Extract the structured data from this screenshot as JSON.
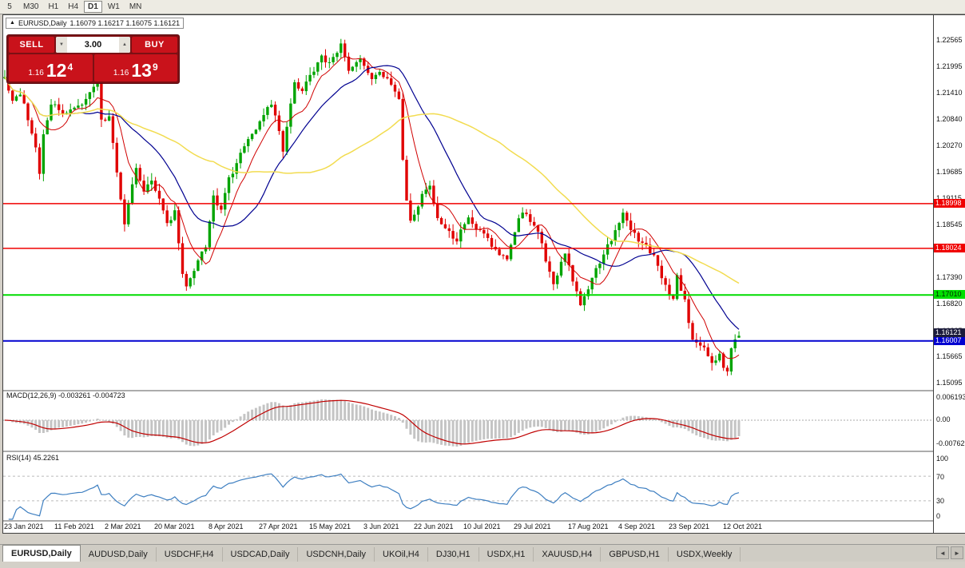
{
  "toolbar": {
    "timeframes": [
      {
        "label": "5",
        "active": false
      },
      {
        "label": "M30",
        "active": false
      },
      {
        "label": "H1",
        "active": false
      },
      {
        "label": "H4",
        "active": false
      },
      {
        "label": "D1",
        "active": true
      },
      {
        "label": "W1",
        "active": false
      },
      {
        "label": "MN",
        "active": false
      }
    ]
  },
  "chart": {
    "title": {
      "expander_icon": "▲",
      "symbol": "EURUSD,Daily",
      "ohlc": "1.16079 1.16217 1.16075 1.16121"
    },
    "colors": {
      "bull": "#00A400",
      "bear": "#E00000",
      "background": "#FFFFFF"
    },
    "price_axis": {
      "ticks": [
        "1.22565",
        "1.21995",
        "1.21410",
        "1.20840",
        "1.20270",
        "1.19685",
        "1.19115",
        "1.18545",
        "1.17390",
        "1.16820",
        "1.16235",
        "1.15665",
        "1.15095"
      ],
      "tags": [
        {
          "text": "1.18998",
          "price": 1.18998,
          "bg": "#F00000",
          "fg": "#FFFFFF"
        },
        {
          "text": "1.18024",
          "price": 1.18024,
          "bg": "#F00000",
          "fg": "#FFFFFF"
        },
        {
          "text": "1.17010",
          "price": 1.1701,
          "bg": "#00E000",
          "fg": "#002800"
        },
        {
          "text": "1.16007",
          "price": 1.16007,
          "bg": "#0000D0",
          "fg": "#FFFFFF"
        }
      ],
      "current_tag": {
        "text": "1.16121",
        "price": 1.16121,
        "bg": "#1C1C3C",
        "fg": "#FFFFFF"
      }
    }
  },
  "trade_panel": {
    "sell_label": "SELL",
    "buy_label": "BUY",
    "volume": "3.00",
    "sell_price": {
      "prefix": "1.16",
      "big": "12",
      "sup": "4"
    },
    "buy_price": {
      "prefix": "1.16",
      "big": "13",
      "sup": "9"
    },
    "icons": {
      "volume_up": "▲",
      "volume_down": "▼"
    }
  },
  "indicators": {
    "macd": {
      "label": "MACD(12,26,9) -0.003261 -0.004723",
      "axis": [
        "0.006193",
        "0.00",
        "-0.00762"
      ]
    },
    "rsi": {
      "label": "RSI(14) 45.2261",
      "axis": [
        "100",
        "70",
        "30",
        "0"
      ]
    }
  },
  "tabs": {
    "items": [
      {
        "label": "EURUSD,Daily",
        "active": true
      },
      {
        "label": "AUDUSD,Daily",
        "active": false
      },
      {
        "label": "USDCHF,H4",
        "active": false
      },
      {
        "label": "USDCAD,Daily",
        "active": false
      },
      {
        "label": "USDCNH,Daily",
        "active": false
      },
      {
        "label": "UKOil,H4",
        "active": false
      },
      {
        "label": "DJ30,H1",
        "active": false
      },
      {
        "label": "USDX,H1",
        "active": false
      },
      {
        "label": "XAUUSD,H4",
        "active": false
      },
      {
        "label": "GBPUSD,H1",
        "active": false
      },
      {
        "label": "USDX,Weekly",
        "active": false
      }
    ],
    "scroll_left_icon": "◄",
    "scroll_right_icon": "►"
  },
  "chart_data": {
    "type": "candlestick",
    "title": "EURUSD,Daily",
    "ohlc_current": {
      "open": 1.16079,
      "high": 1.16217,
      "low": 1.16075,
      "close": 1.16121
    },
    "ylim": [
      1.1496,
      1.2291
    ],
    "bars_total": 191,
    "price_anchors": [
      [
        0,
        1.217
      ],
      [
        2,
        1.2128
      ],
      [
        4,
        1.214
      ],
      [
        6,
        1.2086
      ],
      [
        8,
        1.2022
      ],
      [
        9,
        1.1964
      ],
      [
        10,
        1.2045
      ],
      [
        12,
        1.2118
      ],
      [
        14,
        1.2105
      ],
      [
        16,
        1.2092
      ],
      [
        18,
        1.211
      ],
      [
        20,
        1.2118
      ],
      [
        22,
        1.214
      ],
      [
        24,
        1.2172
      ],
      [
        25,
        1.2078
      ],
      [
        27,
        1.209
      ],
      [
        29,
        1.1968
      ],
      [
        31,
        1.1848
      ],
      [
        32,
        1.19
      ],
      [
        34,
        1.1982
      ],
      [
        36,
        1.193
      ],
      [
        38,
        1.1955
      ],
      [
        40,
        1.1912
      ],
      [
        42,
        1.1852
      ],
      [
        44,
        1.188
      ],
      [
        46,
        1.1752
      ],
      [
        47,
        1.1718
      ],
      [
        48,
        1.1732
      ],
      [
        50,
        1.178
      ],
      [
        52,
        1.1808
      ],
      [
        54,
        1.1912
      ],
      [
        56,
        1.1888
      ],
      [
        58,
        1.1956
      ],
      [
        60,
        1.1982
      ],
      [
        62,
        1.203
      ],
      [
        64,
        1.2048
      ],
      [
        66,
        1.2086
      ],
      [
        69,
        1.2122
      ],
      [
        71,
        1.2058
      ],
      [
        72,
        1.2012
      ],
      [
        74,
        1.212
      ],
      [
        75,
        1.2162
      ],
      [
        77,
        1.2146
      ],
      [
        79,
        1.218
      ],
      [
        82,
        1.2222
      ],
      [
        84,
        1.2205
      ],
      [
        87,
        1.2248
      ],
      [
        89,
        1.2196
      ],
      [
        92,
        1.2214
      ],
      [
        95,
        1.2164
      ],
      [
        97,
        1.219
      ],
      [
        99,
        1.2172
      ],
      [
        101,
        1.214
      ],
      [
        102,
        1.2124
      ],
      [
        103,
        1.1994
      ],
      [
        104,
        1.1906
      ],
      [
        105,
        1.1864
      ],
      [
        107,
        1.1898
      ],
      [
        108,
        1.1924
      ],
      [
        110,
        1.1936
      ],
      [
        112,
        1.1872
      ],
      [
        113,
        1.1858
      ],
      [
        115,
        1.1838
      ],
      [
        117,
        1.1822
      ],
      [
        119,
        1.1862
      ],
      [
        120,
        1.1876
      ],
      [
        122,
        1.1848
      ],
      [
        124,
        1.183
      ],
      [
        126,
        1.1806
      ],
      [
        128,
        1.1792
      ],
      [
        130,
        1.1772
      ],
      [
        132,
        1.184
      ],
      [
        134,
        1.1886
      ],
      [
        136,
        1.1858
      ],
      [
        138,
        1.1836
      ],
      [
        140,
        1.178
      ],
      [
        142,
        1.1722
      ],
      [
        144,
        1.1768
      ],
      [
        145,
        1.1794
      ],
      [
        147,
        1.173
      ],
      [
        149,
        1.1678
      ],
      [
        150,
        1.1696
      ],
      [
        152,
        1.1742
      ],
      [
        154,
        1.1772
      ],
      [
        155,
        1.1794
      ],
      [
        157,
        1.1816
      ],
      [
        159,
        1.186
      ],
      [
        160,
        1.1876
      ],
      [
        162,
        1.1844
      ],
      [
        164,
        1.1818
      ],
      [
        166,
        1.181
      ],
      [
        168,
        1.1782
      ],
      [
        170,
        1.1742
      ],
      [
        172,
        1.1702
      ],
      [
        173,
        1.1688
      ],
      [
        174,
        1.1738
      ],
      [
        176,
        1.1692
      ],
      [
        178,
        1.16
      ],
      [
        180,
        1.1594
      ],
      [
        182,
        1.1572
      ],
      [
        183,
        1.1558
      ],
      [
        185,
        1.1566
      ],
      [
        187,
        1.1532
      ],
      [
        188,
        1.159
      ],
      [
        189,
        1.1598
      ],
      [
        190,
        1.16121
      ]
    ],
    "horizontal_lines": [
      {
        "price": 1.18998,
        "color": "#F00000",
        "width": 1.5
      },
      {
        "price": 1.18024,
        "color": "#F00000",
        "width": 1.5
      },
      {
        "price": 1.1701,
        "color": "#00DC00",
        "width": 2
      },
      {
        "price": 1.16007,
        "color": "#0000D0",
        "width": 2
      }
    ],
    "moving_averages": [
      {
        "period": 8,
        "color": "#D00000",
        "width": 1
      },
      {
        "period": 21,
        "color": "#000090",
        "width": 1.2
      },
      {
        "period": 55,
        "color": "#F2DC50",
        "width": 1.5
      }
    ],
    "macd": {
      "fast": 12,
      "slow": 26,
      "signal": 9,
      "main_current": -0.003261,
      "signal_current": -0.004723,
      "hist_color": "#C4C4C4",
      "signal_color": "#C00000",
      "axis_max": 0.006193
    },
    "rsi": {
      "period": 14,
      "current": 45.2261,
      "color": "#3E7FC1",
      "levels": [
        70,
        30
      ],
      "range": [
        0,
        100
      ]
    },
    "x_labels": [
      {
        "text": "23 Jan 2021",
        "bar": 1
      },
      {
        "text": "11 Feb 2021",
        "bar": 14
      },
      {
        "text": "2 Mar 2021",
        "bar": 27
      },
      {
        "text": "20 Mar 2021",
        "bar": 40
      },
      {
        "text": "8 Apr 2021",
        "bar": 54
      },
      {
        "text": "27 Apr 2021",
        "bar": 67
      },
      {
        "text": "15 May 2021",
        "bar": 80
      },
      {
        "text": "3 Jun 2021",
        "bar": 94
      },
      {
        "text": "22 Jun 2021",
        "bar": 107
      },
      {
        "text": "10 Jul 2021",
        "bar": 120
      },
      {
        "text": "29 Jul 2021",
        "bar": 133
      },
      {
        "text": "17 Aug 2021",
        "bar": 147
      },
      {
        "text": "4 Sep 2021",
        "bar": 160
      },
      {
        "text": "23 Sep 2021",
        "bar": 173
      },
      {
        "text": "12 Oct 2021",
        "bar": 187
      }
    ]
  }
}
